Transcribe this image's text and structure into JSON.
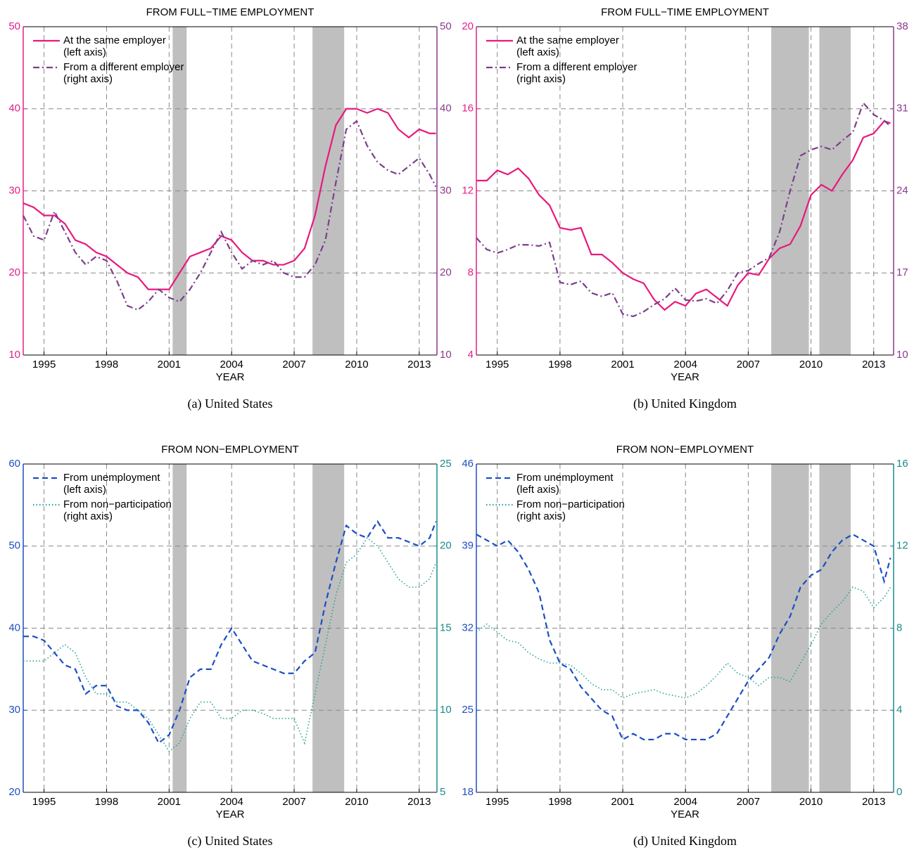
{
  "chart_data": [
    {
      "type": "line",
      "title": "FROM FULL−TIME EMPLOYMENT",
      "xlabel": "YEAR",
      "caption": "(a) United States",
      "xlim": [
        1994,
        2013.85
      ],
      "xticks": [
        1995,
        1998,
        2001,
        2004,
        2007,
        2010,
        2013
      ],
      "ylim": [
        10,
        50
      ],
      "yticks": [
        10,
        20,
        30,
        40,
        50
      ],
      "y2lim": [
        10,
        50
      ],
      "y2ticks": [
        10,
        20,
        30,
        40,
        50
      ],
      "left_axis_color": "#e0208a",
      "right_axis_color": "#8b3a8b",
      "grid": true,
      "legend": "upper left",
      "recessions": [
        [
          2001.17,
          2001.84
        ],
        [
          2007.88,
          2009.4
        ]
      ],
      "x": [
        1994,
        1994.5,
        1995,
        1995.5,
        1996,
        1996.5,
        1997,
        1997.5,
        1998,
        1998.5,
        1999,
        1999.5,
        2000,
        2000.5,
        2001,
        2001.5,
        2002,
        2002.5,
        2003,
        2003.5,
        2004,
        2004.5,
        2005,
        2005.5,
        2006,
        2006.5,
        2007,
        2007.5,
        2008,
        2008.5,
        2009,
        2009.5,
        2010,
        2010.5,
        2011,
        2011.5,
        2012,
        2012.5,
        2013,
        2013.5,
        2013.8
      ],
      "series": [
        {
          "name": "At the same employer\n(left axis)",
          "color": "#e8197d",
          "style": "solid",
          "axis": "y",
          "values": [
            28.5,
            28,
            27,
            27,
            26,
            24,
            23.5,
            22.5,
            22,
            21,
            20,
            19.5,
            18,
            18,
            18,
            20,
            22,
            22.5,
            23,
            24.5,
            24,
            22.5,
            21.5,
            21.5,
            21,
            21,
            21.5,
            23,
            27,
            33,
            38,
            40,
            40,
            39.5,
            40,
            39.5,
            37.5,
            36.5,
            37.5,
            37,
            37
          ]
        },
        {
          "name": "From a different employer\n(right axis)",
          "color": "#7b3f8c",
          "style": "dashdot",
          "axis": "y2",
          "values": [
            27,
            24.5,
            24,
            27.5,
            25,
            22.5,
            21,
            22,
            21.5,
            19,
            16,
            15.5,
            16.5,
            18,
            17,
            16.5,
            18,
            20,
            22.5,
            25,
            22.5,
            20.5,
            21.5,
            21,
            21.5,
            20,
            19.5,
            19.5,
            21,
            24,
            31,
            37.5,
            38.5,
            35.5,
            33.5,
            32.5,
            32,
            33,
            34,
            32,
            30.5
          ]
        }
      ]
    },
    {
      "type": "line",
      "title": "FROM FULL−TIME EMPLOYMENT",
      "xlabel": "YEAR",
      "caption": "(b) United Kingdom",
      "xlim": [
        1994,
        2013.95
      ],
      "xticks": [
        1995,
        1998,
        2001,
        2004,
        2007,
        2010,
        2013
      ],
      "ylim": [
        4,
        20
      ],
      "yticks": [
        4,
        8,
        12,
        16,
        20
      ],
      "y2lim": [
        10,
        38
      ],
      "y2ticks": [
        10,
        17,
        24,
        31,
        38
      ],
      "left_axis_color": "#e0208a",
      "right_axis_color": "#8b3a8b",
      "grid": true,
      "legend": "upper left",
      "recessions": [
        [
          2008.1,
          2009.9
        ],
        [
          2010.4,
          2011.9
        ]
      ],
      "x": [
        1994,
        1994.5,
        1995,
        1995.5,
        1996,
        1996.5,
        1997,
        1997.5,
        1998,
        1998.5,
        1999,
        1999.5,
        2000,
        2000.5,
        2001,
        2001.5,
        2002,
        2002.5,
        2003,
        2003.5,
        2004,
        2004.5,
        2005,
        2005.5,
        2006,
        2006.5,
        2007,
        2007.5,
        2008,
        2008.5,
        2009,
        2009.5,
        2010,
        2010.5,
        2011,
        2011.5,
        2012,
        2012.5,
        2013,
        2013.5,
        2013.8
      ],
      "series": [
        {
          "name": "At the same employer\n(left axis)",
          "color": "#e8197d",
          "style": "solid",
          "axis": "y",
          "values": [
            12.5,
            12.5,
            13,
            12.8,
            13.1,
            12.6,
            11.8,
            11.3,
            10.2,
            10.1,
            10.2,
            8.9,
            8.9,
            8.5,
            8,
            7.7,
            7.5,
            6.7,
            6.2,
            6.6,
            6.4,
            7,
            7.2,
            6.8,
            6.4,
            7.4,
            8,
            7.9,
            8.7,
            9.2,
            9.4,
            10.3,
            11.8,
            12.3,
            12,
            12.8,
            13.5,
            14.6,
            14.8,
            15.4,
            15.3
          ]
        },
        {
          "name": "From a different employer\n(right axis)",
          "color": "#7b3f8c",
          "style": "dashdot",
          "axis": "y2",
          "values": [
            20,
            19,
            18.7,
            19,
            19.4,
            19.4,
            19.3,
            19.6,
            16.2,
            16,
            16.3,
            15.3,
            15,
            15.3,
            13.5,
            13.3,
            13.7,
            14.3,
            14.8,
            15.7,
            14.7,
            14.6,
            14.8,
            14.4,
            15.5,
            17,
            17.2,
            17.8,
            18.3,
            20.5,
            24,
            27,
            27.5,
            27.8,
            27.5,
            28.3,
            29,
            31.5,
            30.5,
            30,
            29.5
          ]
        }
      ]
    },
    {
      "type": "line",
      "title": "FROM NON−EMPLOYMENT",
      "xlabel": "YEAR",
      "caption": "(c) United States",
      "xlim": [
        1994,
        2013.85
      ],
      "xticks": [
        1995,
        1998,
        2001,
        2004,
        2007,
        2010,
        2013
      ],
      "ylim": [
        20,
        60
      ],
      "yticks": [
        20,
        30,
        40,
        50,
        60
      ],
      "y2lim": [
        5,
        25
      ],
      "y2ticks": [
        5,
        10,
        15,
        20,
        25
      ],
      "left_axis_color": "#1f4fbf",
      "right_axis_color": "#1a8a8a",
      "grid": true,
      "legend": "upper left",
      "recessions": [
        [
          2001.17,
          2001.84
        ],
        [
          2007.88,
          2009.4
        ]
      ],
      "x": [
        1994,
        1994.5,
        1995,
        1995.5,
        1996,
        1996.5,
        1997,
        1997.5,
        1998,
        1998.5,
        1999,
        1999.5,
        2000,
        2000.5,
        2001,
        2001.5,
        2002,
        2002.5,
        2003,
        2003.5,
        2004,
        2004.5,
        2005,
        2005.5,
        2006,
        2006.5,
        2007,
        2007.5,
        2008,
        2008.5,
        2009,
        2009.5,
        2010,
        2010.5,
        2011,
        2011.5,
        2012,
        2012.5,
        2013,
        2013.5,
        2013.8
      ],
      "series": [
        {
          "name": "From unemployment\n(left axis)",
          "color": "#1a4fc4",
          "style": "dashed",
          "axis": "y",
          "values": [
            39,
            39,
            38.5,
            37,
            35.5,
            35,
            32,
            33,
            33,
            30.5,
            30,
            30,
            28.5,
            26,
            27,
            30,
            34,
            35,
            35,
            38,
            40,
            38,
            36,
            35.5,
            35,
            34.5,
            34.5,
            36,
            37,
            43,
            48,
            52.5,
            51.5,
            51,
            53,
            51,
            51,
            50.5,
            50,
            51,
            53
          ]
        },
        {
          "name": "From non−participation\n(right axis)",
          "color": "#2aa198",
          "style": "dotted",
          "axis": "y2",
          "values": [
            13,
            13,
            13,
            13.5,
            14,
            13.5,
            12,
            11,
            11,
            10.5,
            10.5,
            10,
            9.5,
            8.5,
            7.5,
            8,
            9.5,
            10.5,
            10.5,
            9.5,
            9.5,
            10,
            10,
            9.8,
            9.5,
            9.5,
            9.5,
            8,
            11,
            14,
            17,
            19,
            19.5,
            20.5,
            20,
            19,
            18,
            17.5,
            17.5,
            18,
            19
          ]
        }
      ]
    },
    {
      "type": "line",
      "title": "FROM NON−EMPLOYMENT",
      "xlabel": "YEAR",
      "caption": "(d) United Kingdom",
      "xlim": [
        1994,
        2013.95
      ],
      "xticks": [
        1995,
        1998,
        2001,
        2004,
        2007,
        2010,
        2013
      ],
      "ylim": [
        18,
        46
      ],
      "yticks": [
        18,
        25,
        32,
        39,
        46
      ],
      "y2lim": [
        0,
        16
      ],
      "y2ticks": [
        0,
        4,
        8,
        12,
        16
      ],
      "left_axis_color": "#1f4fbf",
      "right_axis_color": "#1a8a8a",
      "grid": true,
      "legend": "upper left",
      "recessions": [
        [
          2008.1,
          2009.9
        ],
        [
          2010.4,
          2011.9
        ]
      ],
      "x": [
        1994,
        1994.5,
        1995,
        1995.5,
        1996,
        1996.5,
        1997,
        1997.5,
        1998,
        1998.5,
        1999,
        1999.5,
        2000,
        2000.5,
        2001,
        2001.5,
        2002,
        2002.5,
        2003,
        2003.5,
        2004,
        2004.5,
        2005,
        2005.5,
        2006,
        2006.5,
        2007,
        2007.5,
        2008,
        2008.5,
        2009,
        2009.5,
        2010,
        2010.5,
        2011,
        2011.5,
        2012,
        2012.5,
        2013,
        2013.5,
        2013.8
      ],
      "series": [
        {
          "name": "From unemployment\n(left axis)",
          "color": "#1a4fc4",
          "style": "dashed",
          "axis": "y",
          "values": [
            40,
            39.5,
            39,
            39.5,
            38.5,
            37,
            35,
            31,
            29,
            28.5,
            27,
            26,
            25,
            24.5,
            22.5,
            23,
            22.5,
            22.5,
            23,
            23,
            22.5,
            22.5,
            22.5,
            23,
            24.5,
            26,
            27.5,
            28.5,
            29.5,
            31.5,
            33,
            35.5,
            36.5,
            37,
            38.5,
            39.5,
            40,
            39.5,
            39,
            36,
            38
          ]
        },
        {
          "name": "From non−participation\n(right axis)",
          "color": "#2aa198",
          "style": "dotted",
          "axis": "y2",
          "values": [
            7.8,
            8.2,
            7.8,
            7.4,
            7.3,
            6.8,
            6.5,
            6.3,
            6.3,
            6.2,
            5.8,
            5.3,
            5,
            5,
            4.6,
            4.8,
            4.9,
            5,
            4.8,
            4.7,
            4.6,
            4.8,
            5.2,
            5.7,
            6.3,
            5.8,
            5.6,
            5.2,
            5.6,
            5.6,
            5.4,
            6.3,
            7.2,
            8.2,
            8.8,
            9.3,
            10,
            9.8,
            9,
            9.5,
            10
          ]
        }
      ]
    }
  ]
}
